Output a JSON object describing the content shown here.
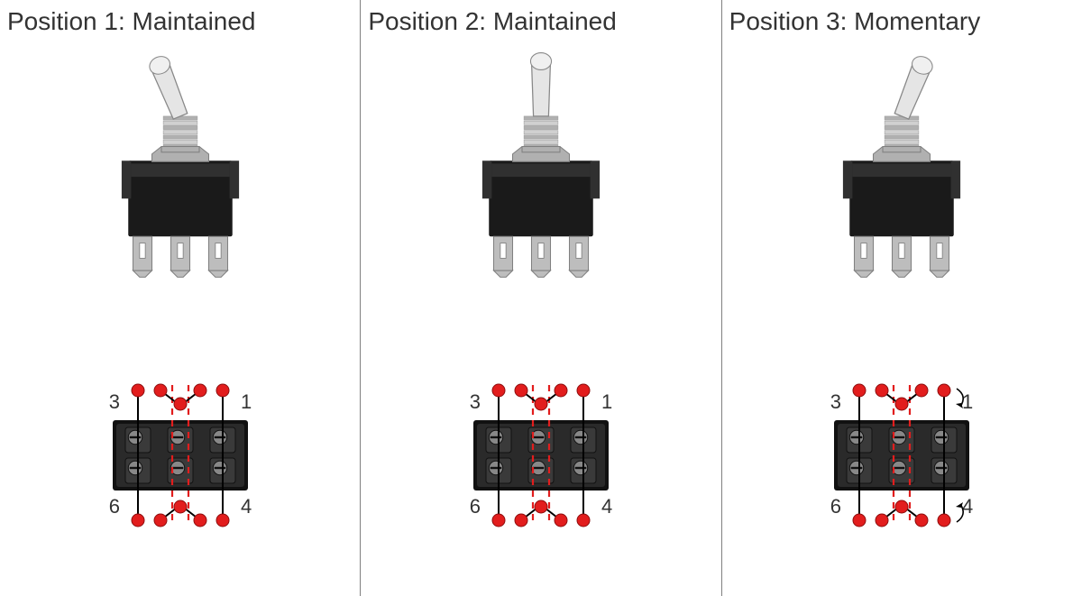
{
  "colors": {
    "text": "#333333",
    "divider": "#808080",
    "body": "#1a1a1a",
    "bodyLight": "#303030",
    "metal": "#b0b0b0",
    "metal2": "#d0d0d0",
    "lever": "#e5e5e5",
    "leverEdge": "#888888",
    "tab": "#bdbdbd",
    "tabEdge": "#808080",
    "red": "#e21d1d",
    "dash": "#e21d1d",
    "terminalDark": "#111111",
    "terminalMid": "#3a3a3a",
    "terminalLight": "#888888",
    "labelNum": "#333333"
  },
  "terminalLabels": {
    "tl": "3",
    "tr": "1",
    "bl": "6",
    "br": "4"
  },
  "panels": [
    {
      "title": "Position 1: Maintained",
      "leverDir": "left",
      "momentaryArrows": false
    },
    {
      "title": "Position 2: Maintained",
      "leverDir": "center",
      "momentaryArrows": false
    },
    {
      "title": "Position 3: Momentary",
      "leverDir": "right",
      "momentaryArrows": true
    }
  ],
  "sizes": {
    "titleFont": 28,
    "labelFont": 22,
    "dotR": 7,
    "lineW": 2,
    "dashW": 2.2
  }
}
